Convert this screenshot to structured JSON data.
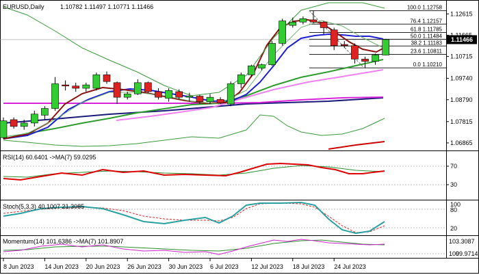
{
  "header": {
    "symbol_tf": "EURUSD,Daily",
    "ohlc": "1.10782 1.11497 1.10771 1.11466"
  },
  "price_axis": {
    "ticks": [
      "1.12615",
      "1.11665",
      "1.10715",
      "1.09740",
      "1.08790",
      "1.07815",
      "1.06865"
    ],
    "current_price": "1.11466"
  },
  "fibonacci": {
    "levels": [
      {
        "label": "100.0 1.12758",
        "value": 1.12758
      },
      {
        "label": "76.4 1.12157",
        "value": 1.12157
      },
      {
        "label": "61.8 1.11785",
        "value": 1.11785
      },
      {
        "label": "50.0 1.11484",
        "value": 1.11484
      },
      {
        "label": "38.2 1.11183",
        "value": 1.11183
      },
      {
        "label": "23.6 1.10811",
        "value": 1.10811
      },
      {
        "label": "0.0 1.10210",
        "value": 1.1021
      }
    ]
  },
  "rsi": {
    "label": "RSI(14) 60.6401 ->MA(7) 59.0295",
    "ticks": [
      "70",
      "30"
    ]
  },
  "stoch": {
    "label": "Stoch(5,3,3) 40.1007 21.3085",
    "ticks": [
      "100",
      "80",
      "20"
    ]
  },
  "momentum": {
    "label": "Momentum(14) 101.6386 ->MA(7) 101.8907",
    "ticks": [
      "103.3087",
      "100",
      "99.9714"
    ]
  },
  "date_axis": {
    "labels": [
      "8 Jun 2023",
      "14 Jun 2023",
      "20 Jun 2023",
      "26 Jun 2023",
      "30 Jun 2023",
      "6 Jul 2023",
      "12 Jul 2023",
      "18 Jul 2023",
      "24 Jul 2023"
    ]
  },
  "chart_data": {
    "type": "candlestick",
    "symbol": "EURUSD",
    "timeframe": "Daily",
    "ylim": [
      1.0665,
      1.1305
    ],
    "candles": [
      {
        "o": 1.071,
        "h": 1.08,
        "l": 1.0705,
        "c": 1.0785
      },
      {
        "o": 1.079,
        "h": 1.08,
        "l": 1.075,
        "c": 1.076
      },
      {
        "o": 1.076,
        "h": 1.079,
        "l": 1.0745,
        "c": 1.0775
      },
      {
        "o": 1.0775,
        "h": 1.083,
        "l": 1.076,
        "c": 1.0815
      },
      {
        "o": 1.081,
        "h": 1.085,
        "l": 1.079,
        "c": 1.084
      },
      {
        "o": 1.084,
        "h": 1.098,
        "l": 1.083,
        "c": 1.095
      },
      {
        "o": 1.0945,
        "h": 1.0965,
        "l": 1.092,
        "c": 1.094
      },
      {
        "o": 1.094,
        "h": 1.0955,
        "l": 1.0915,
        "c": 1.093
      },
      {
        "o": 1.093,
        "h": 1.0955,
        "l": 1.0915,
        "c": 1.0945
      },
      {
        "o": 1.093,
        "h": 1.1,
        "l": 1.092,
        "c": 1.099
      },
      {
        "o": 1.099,
        "h": 1.1005,
        "l": 1.095,
        "c": 1.096
      },
      {
        "o": 1.0955,
        "h": 1.096,
        "l": 1.086,
        "c": 1.089
      },
      {
        "o": 1.089,
        "h": 1.0915,
        "l": 1.088,
        "c": 1.0905
      },
      {
        "o": 1.0905,
        "h": 1.097,
        "l": 1.09,
        "c": 1.0955
      },
      {
        "o": 1.0955,
        "h": 1.096,
        "l": 1.091,
        "c": 1.0915
      },
      {
        "o": 1.0915,
        "h": 1.093,
        "l": 1.088,
        "c": 1.089
      },
      {
        "o": 1.0885,
        "h": 1.093,
        "l": 1.087,
        "c": 1.092
      },
      {
        "o": 1.0915,
        "h": 1.0925,
        "l": 1.088,
        "c": 1.089
      },
      {
        "o": 1.089,
        "h": 1.091,
        "l": 1.087,
        "c": 1.0895
      },
      {
        "o": 1.0895,
        "h": 1.09,
        "l": 1.086,
        "c": 1.087
      },
      {
        "o": 1.087,
        "h": 1.0905,
        "l": 1.086,
        "c": 1.089
      },
      {
        "o": 1.088,
        "h": 1.089,
        "l": 1.086,
        "c": 1.0865
      },
      {
        "o": 1.086,
        "h": 1.096,
        "l": 1.085,
        "c": 1.095
      },
      {
        "o": 1.095,
        "h": 1.1,
        "l": 1.093,
        "c": 1.099
      },
      {
        "o": 1.099,
        "h": 1.1035,
        "l": 1.098,
        "c": 1.103
      },
      {
        "o": 1.102,
        "h": 1.104,
        "l": 1.101,
        "c": 1.1035
      },
      {
        "o": 1.1035,
        "h": 1.114,
        "l": 1.103,
        "c": 1.113
      },
      {
        "o": 1.113,
        "h": 1.124,
        "l": 1.112,
        "c": 1.123
      },
      {
        "o": 1.121,
        "h": 1.1245,
        "l": 1.12,
        "c": 1.1225
      },
      {
        "o": 1.1225,
        "h": 1.125,
        "l": 1.1215,
        "c": 1.124
      },
      {
        "o": 1.1235,
        "h": 1.1276,
        "l": 1.122,
        "c": 1.1225
      },
      {
        "o": 1.1225,
        "h": 1.123,
        "l": 1.117,
        "c": 1.12
      },
      {
        "o": 1.119,
        "h": 1.12,
        "l": 1.11,
        "c": 1.112
      },
      {
        "o": 1.1125,
        "h": 1.114,
        "l": 1.111,
        "c": 1.112
      },
      {
        "o": 1.112,
        "h": 1.113,
        "l": 1.104,
        "c": 1.106
      },
      {
        "o": 1.106,
        "h": 1.107,
        "l": 1.1021,
        "c": 1.105
      },
      {
        "o": 1.105,
        "h": 1.1085,
        "l": 1.1035,
        "c": 1.1078
      },
      {
        "o": 1.1078,
        "h": 1.115,
        "l": 1.1077,
        "c": 1.1147
      }
    ]
  }
}
